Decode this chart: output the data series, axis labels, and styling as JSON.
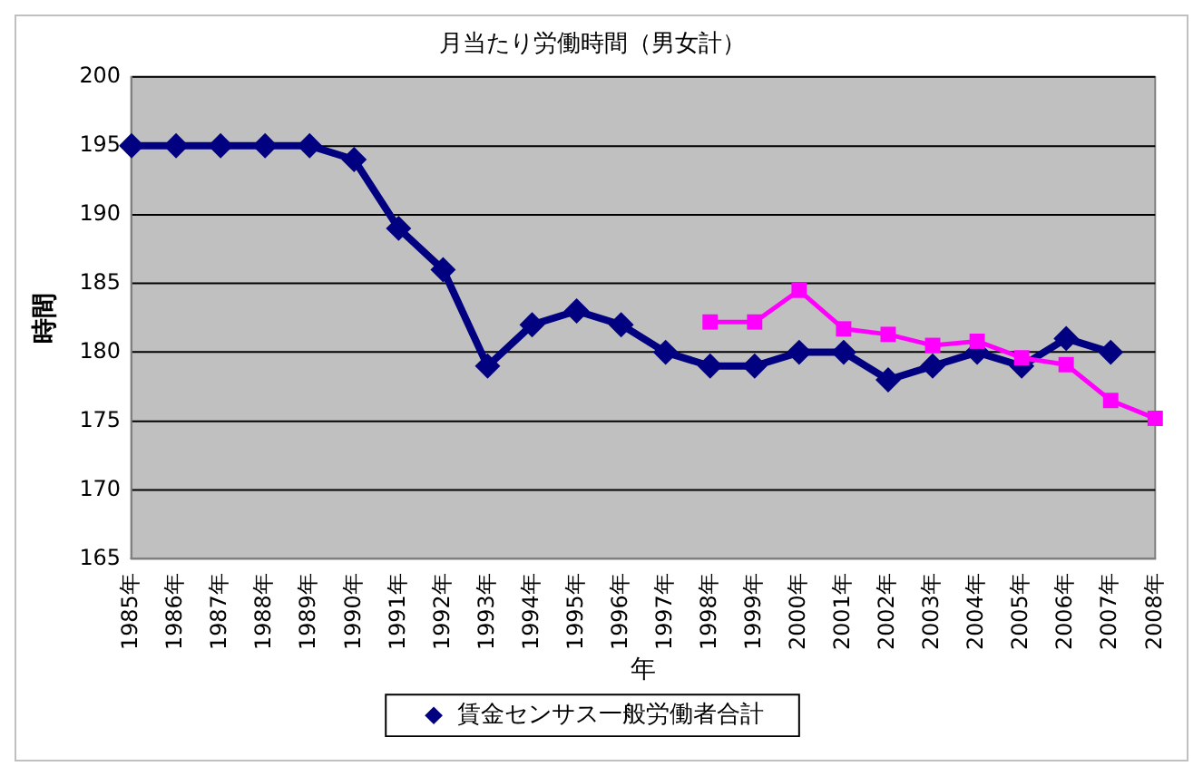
{
  "chart_data": {
    "type": "line",
    "title": "月当たり労働時間（男女計）",
    "xlabel": "年",
    "ylabel": "時間",
    "categories": [
      "1985年",
      "1986年",
      "1987年",
      "1988年",
      "1989年",
      "1990年",
      "1991年",
      "1992年",
      "1993年",
      "1994年",
      "1995年",
      "1996年",
      "1997年",
      "1998年",
      "1999年",
      "2000年",
      "2001年",
      "2002年",
      "2003年",
      "2004年",
      "2005年",
      "2006年",
      "2007年",
      "2008年"
    ],
    "series": [
      {
        "name": "賃金センサス一般労働者合計",
        "color": "#000080",
        "marker": "diamond",
        "values": [
          195,
          195,
          195,
          195,
          195,
          194,
          189,
          186,
          179,
          182,
          183,
          182,
          180,
          179,
          179,
          180,
          180,
          178,
          179,
          180,
          179,
          181,
          180,
          null
        ]
      },
      {
        "color": "#ff00ff",
        "marker": "square",
        "values": [
          null,
          null,
          null,
          null,
          null,
          null,
          null,
          null,
          null,
          null,
          null,
          null,
          null,
          182.2,
          182.2,
          184.5,
          181.7,
          181.3,
          180.5,
          180.8,
          179.6,
          179.1,
          176.5,
          175.2
        ]
      }
    ],
    "ylim": [
      165,
      200
    ],
    "yticks": [
      165,
      170,
      175,
      180,
      185,
      190,
      195,
      200
    ],
    "grid": "y",
    "legend": "bottom"
  }
}
